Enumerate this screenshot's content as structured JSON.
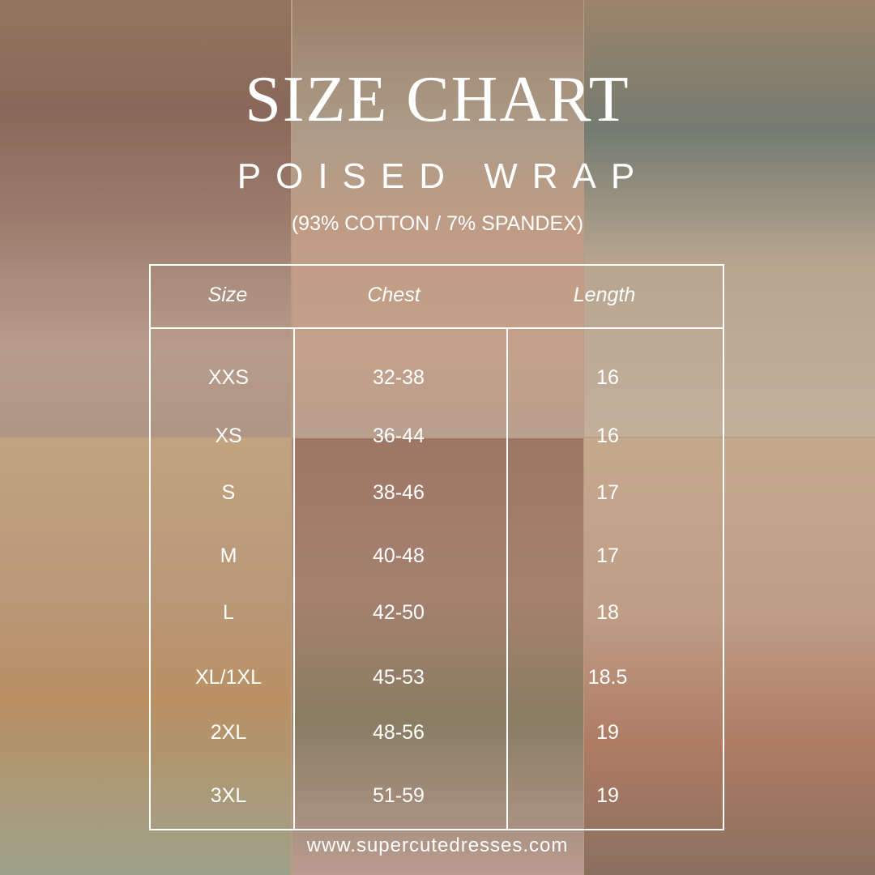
{
  "title": "SIZE CHART",
  "subtitle": "POISED WRAP",
  "material": "(93% COTTON / 7% SPANDEX)",
  "table": {
    "headers": [
      "Size",
      "Chest",
      "Length"
    ],
    "rows": [
      [
        "XXS",
        "32-38",
        "16"
      ],
      [
        "XS",
        "36-44",
        "16"
      ],
      [
        "S",
        "38-46",
        "17"
      ],
      [
        "M",
        "40-48",
        "17"
      ],
      [
        "L",
        "42-50",
        "18"
      ],
      [
        "XL/1XL",
        "45-53",
        "18.5"
      ],
      [
        "2XL",
        "48-56",
        "19"
      ],
      [
        "3XL",
        "51-59",
        "19"
      ]
    ]
  },
  "footer": "www.supercutedresses.com"
}
